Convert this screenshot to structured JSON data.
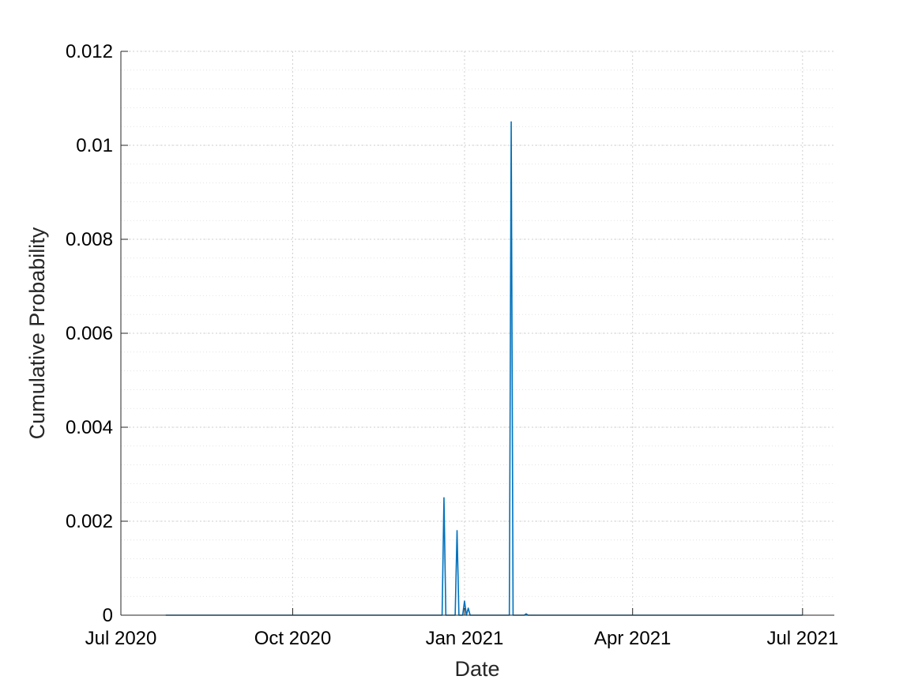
{
  "chart_data": {
    "type": "line",
    "title": "",
    "xlabel": "Date",
    "ylabel": "Cumulative Probability",
    "xlim": [
      "2020-07-01",
      "2021-07-18"
    ],
    "ylim": [
      0,
      0.012
    ],
    "x_ticks": [
      {
        "date": "2020-07-01",
        "label": "Jul 2020"
      },
      {
        "date": "2020-10-01",
        "label": "Oct 2020"
      },
      {
        "date": "2021-01-01",
        "label": "Jan 2021"
      },
      {
        "date": "2021-04-01",
        "label": "Apr 2021"
      },
      {
        "date": "2021-07-01",
        "label": "Jul 2021"
      }
    ],
    "y_ticks": [
      {
        "value": 0,
        "label": "0"
      },
      {
        "value": 0.002,
        "label": "0.002"
      },
      {
        "value": 0.004,
        "label": "0.004"
      },
      {
        "value": 0.006,
        "label": "0.006"
      },
      {
        "value": 0.008,
        "label": "0.008"
      },
      {
        "value": 0.01,
        "label": "0.01"
      },
      {
        "value": 0.012,
        "label": "0.012"
      }
    ],
    "grid": true,
    "minor_grid": true,
    "series": [
      {
        "color": "#0072BD",
        "points": [
          {
            "x": "2020-07-25",
            "y": 0
          },
          {
            "x": "2020-12-20",
            "y": 0
          },
          {
            "x": "2020-12-21",
            "y": 0.0025
          },
          {
            "x": "2020-12-22",
            "y": 0
          },
          {
            "x": "2020-12-27",
            "y": 0
          },
          {
            "x": "2020-12-28",
            "y": 0.0018
          },
          {
            "x": "2020-12-29",
            "y": 0
          },
          {
            "x": "2020-12-31",
            "y": 0
          },
          {
            "x": "2021-01-01",
            "y": 0.0003
          },
          {
            "x": "2021-01-02",
            "y": 0
          },
          {
            "x": "2021-01-03",
            "y": 0.00015
          },
          {
            "x": "2021-01-04",
            "y": 0
          },
          {
            "x": "2021-01-25",
            "y": 0
          },
          {
            "x": "2021-01-26",
            "y": 0.0105
          },
          {
            "x": "2021-01-27",
            "y": 0
          },
          {
            "x": "2021-02-02",
            "y": 0
          },
          {
            "x": "2021-02-03",
            "y": 3e-05
          },
          {
            "x": "2021-02-04",
            "y": 0
          },
          {
            "x": "2021-07-01",
            "y": 0
          }
        ]
      }
    ]
  }
}
